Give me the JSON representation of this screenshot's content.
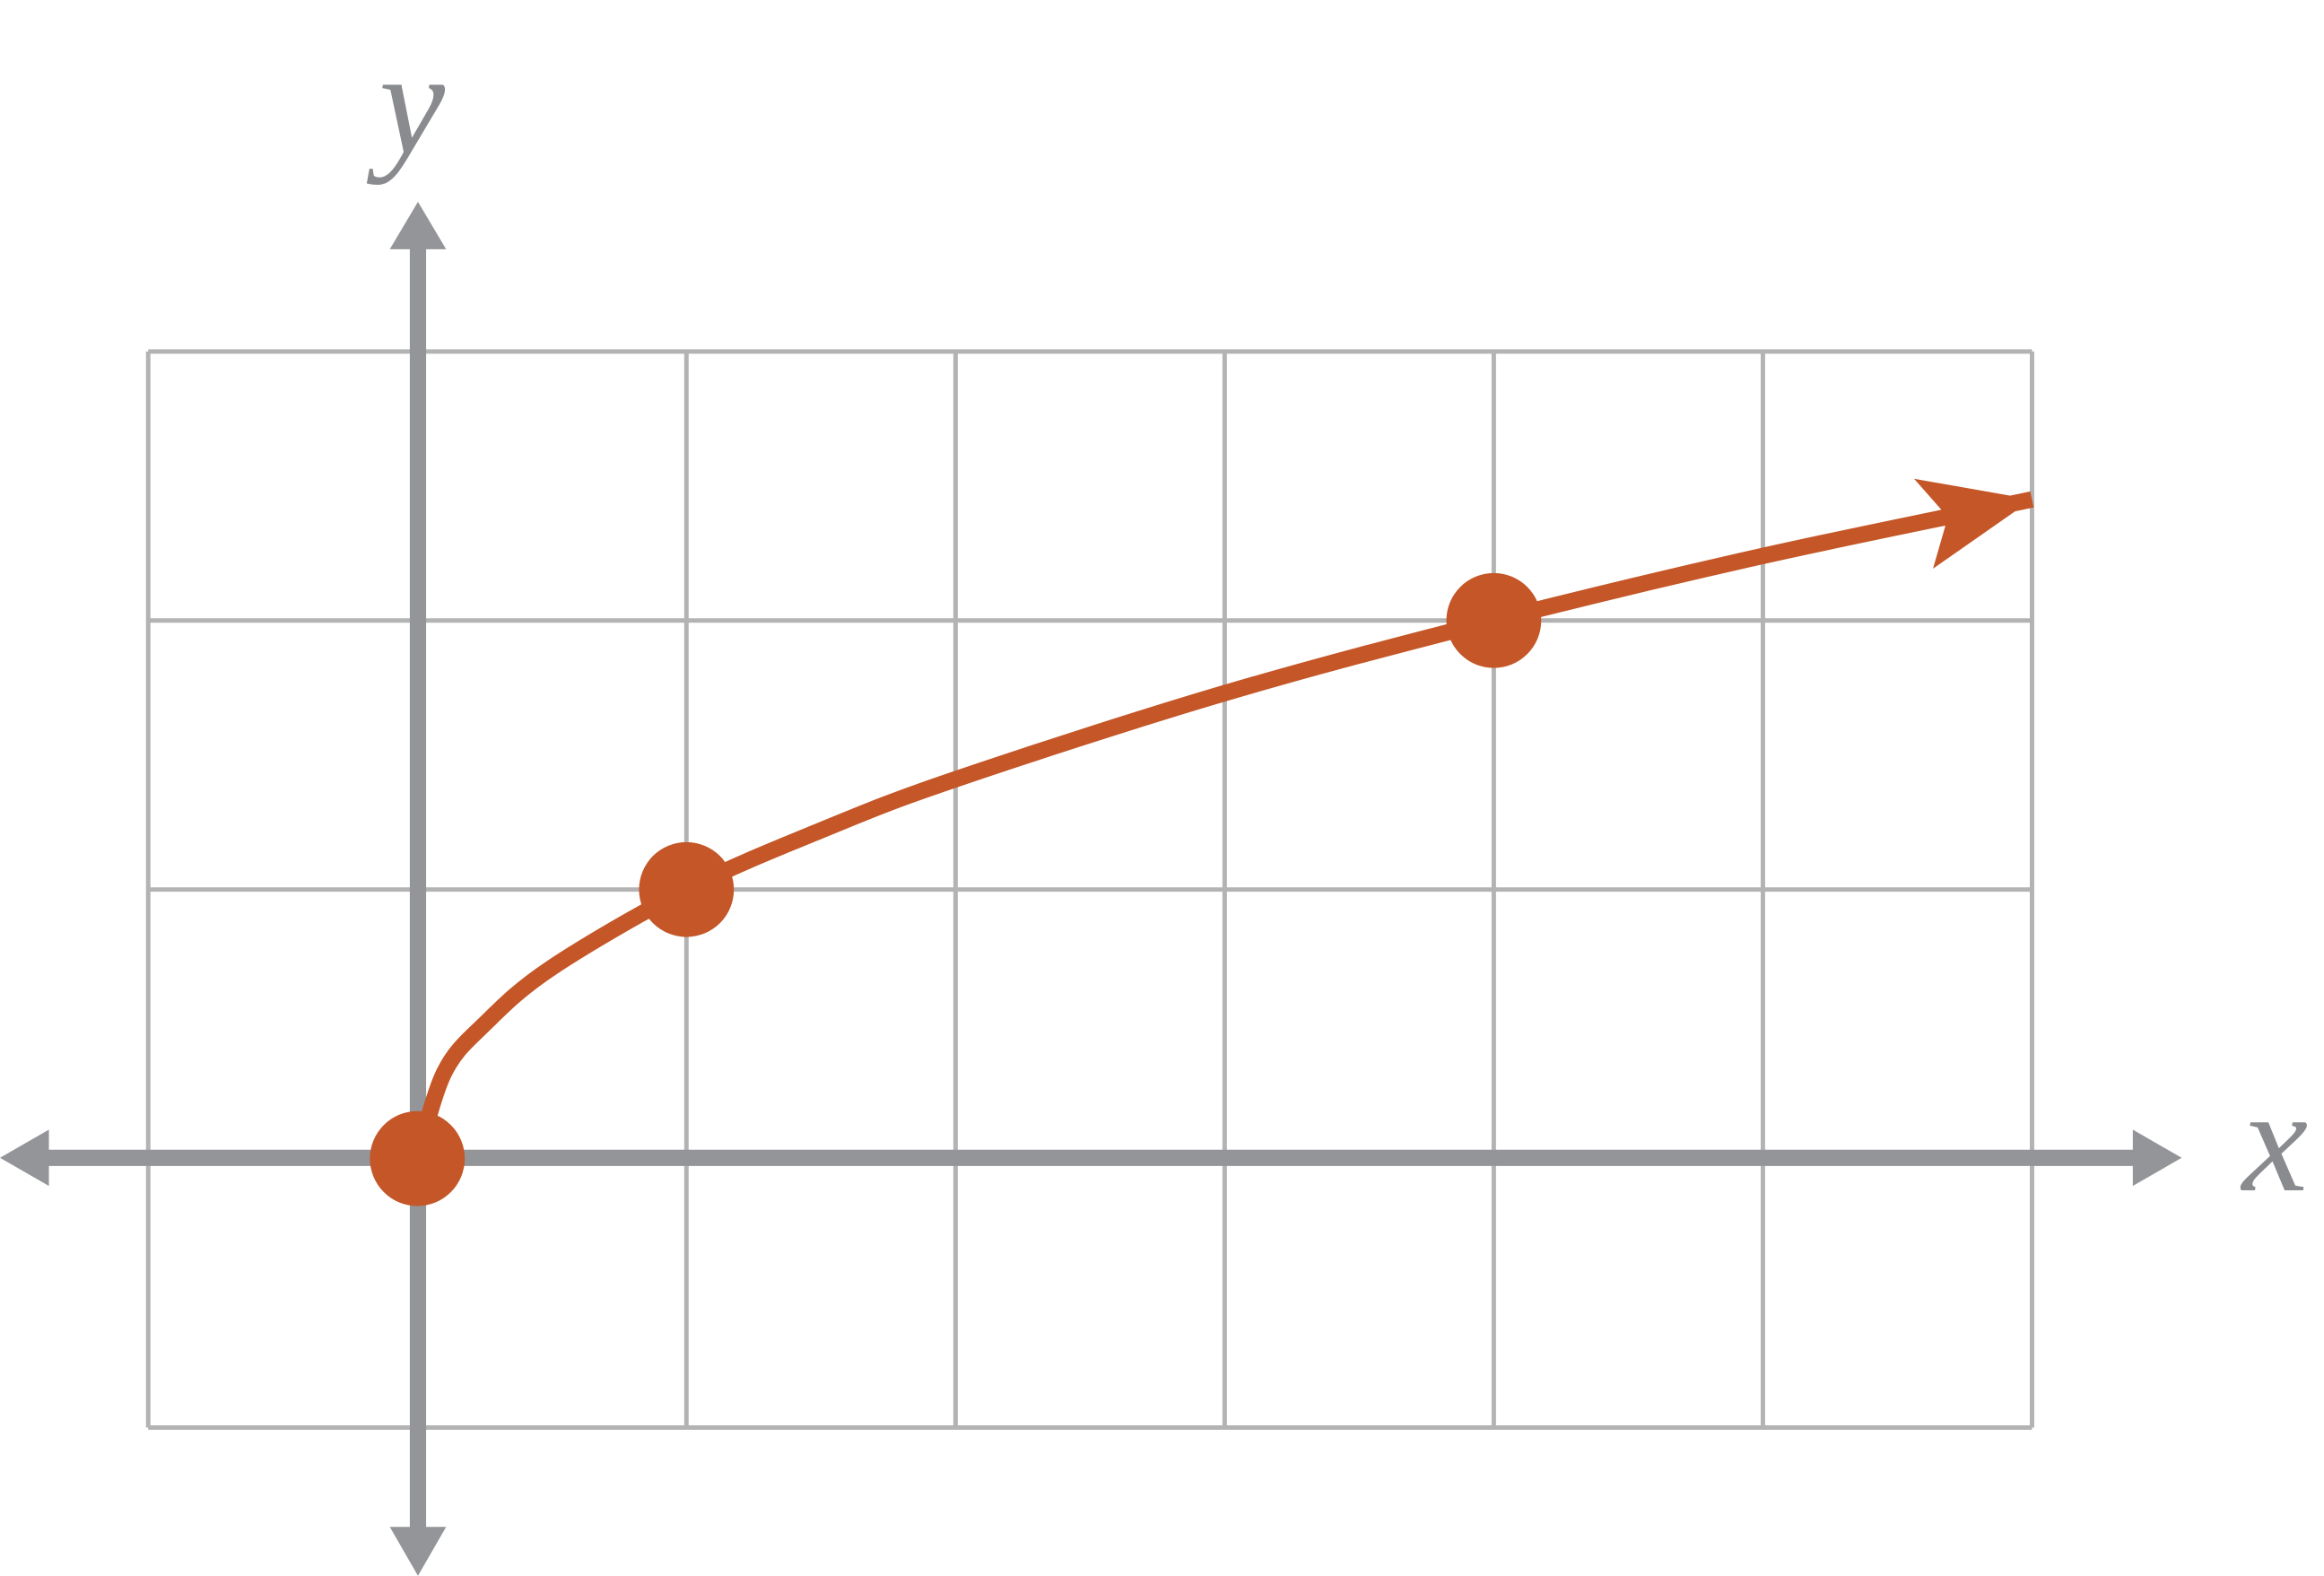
{
  "chart_data": {
    "type": "line",
    "x_label": "x",
    "y_label": "y",
    "xlim": [
      -1,
      6
    ],
    "ylim": [
      -1,
      3
    ],
    "xticks": [
      -1,
      0,
      1,
      2,
      3,
      4,
      5,
      6
    ],
    "yticks": [
      -1,
      0,
      1,
      2,
      3
    ],
    "grid": true,
    "series": [
      {
        "color": "#c45627",
        "arrow": true,
        "x": [
          0,
          0.1,
          0.25,
          0.5,
          1,
          1.5,
          2,
          3,
          4,
          5,
          6
        ],
        "values": [
          0,
          0.32,
          0.5,
          0.71,
          1,
          1.22,
          1.41,
          1.73,
          2,
          2.24,
          2.45
        ]
      }
    ],
    "points": {
      "color": "#c45627",
      "x": [
        0,
        1,
        4
      ],
      "values": [
        0,
        1,
        2
      ]
    }
  }
}
